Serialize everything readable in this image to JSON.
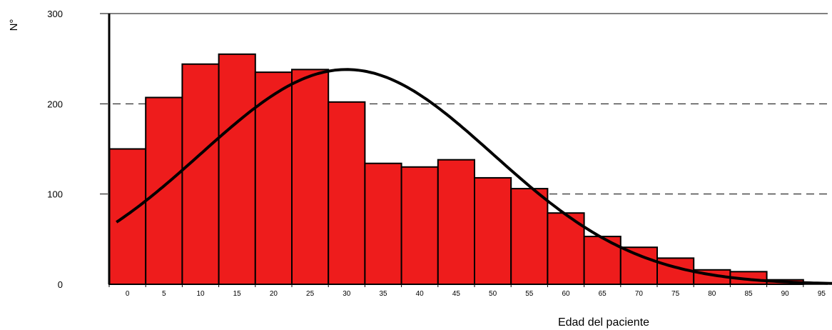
{
  "chart_data": {
    "type": "bar",
    "title": "",
    "xlabel": "Edad del paciente",
    "ylabel": "N°",
    "ylim": [
      0,
      300
    ],
    "y_ticks": [
      0,
      100,
      200,
      300
    ],
    "grid": "dashed horizontal at 100, 200, 300",
    "bin_width": 5,
    "categories": [
      "0",
      "5",
      "10",
      "15",
      "20",
      "25",
      "30",
      "35",
      "40",
      "45",
      "50",
      "55",
      "60",
      "65",
      "70",
      "75",
      "80",
      "85",
      "90",
      "95"
    ],
    "series": [
      {
        "values": [
          150,
          207,
          244,
          255,
          235,
          238,
          202,
          134,
          130,
          138,
          118,
          106,
          79,
          53,
          41,
          29,
          16,
          14,
          5,
          0
        ]
      }
    ],
    "normal_curve": {
      "mean": 30,
      "std": 20,
      "peak": 238,
      "x_range": [
        -1.5,
        98
      ]
    },
    "colors": {
      "bar_fill": "#ee1c1c",
      "bar_stroke": "#000000",
      "curve": "#000000"
    }
  }
}
